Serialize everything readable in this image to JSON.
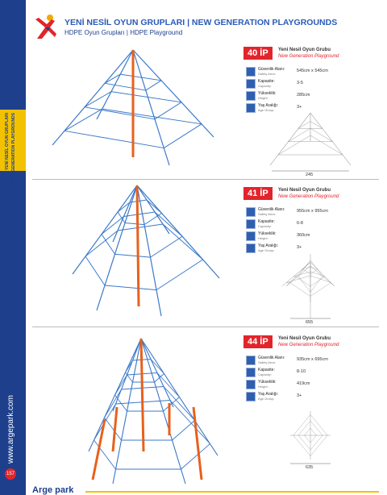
{
  "header": {
    "title": "YENİ NESİL OYUN GRUPLARI | NEW GENERATION PLAYGROUNDS",
    "subtitle": "HDPE Oyun Grupları | HDPE Playground"
  },
  "sidebar": {
    "section_tab": [
      "YENİ NESİL OYUN GRUPLARI",
      "NEW GENERATION PLAYGROUNDS"
    ],
    "website": "www.argepark.com",
    "page_number": "157"
  },
  "products": [
    {
      "code": "40 İP",
      "name_tr": "Yeni Nesil Oyun Grubu",
      "name_en": "New Generation Playground",
      "dimension": "245",
      "specs": [
        {
          "label_tr": "Güvenlik Alanı:",
          "label_en": "Safety Area:",
          "value": "545cm x 545cm"
        },
        {
          "label_tr": "Kapasite:",
          "label_en": "Capacity:",
          "value": "3-5"
        },
        {
          "label_tr": "Yükseklik:",
          "label_en": "Height:",
          "value": "285cm"
        },
        {
          "label_tr": "Yaş Aralığı:",
          "label_en": "Age Group:",
          "value": "3+"
        }
      ]
    },
    {
      "code": "41 İP",
      "name_tr": "Yeni Nesil Oyun Grubu",
      "name_en": "New Generation Playground",
      "dimension": "655",
      "specs": [
        {
          "label_tr": "Güvenlik Alanı:",
          "label_en": "Safety Area:",
          "value": "955cm x 955cm"
        },
        {
          "label_tr": "Kapasite:",
          "label_en": "Capacity:",
          "value": "6-8"
        },
        {
          "label_tr": "Yükseklik:",
          "label_en": "Height:",
          "value": "360cm"
        },
        {
          "label_tr": "Yaş Aralığı:",
          "label_en": "Age Group:",
          "value": "3+"
        }
      ]
    },
    {
      "code": "44 İP",
      "name_tr": "Yeni Nesil Oyun Grubu",
      "name_en": "New Generation Playground",
      "dimension": "635",
      "specs": [
        {
          "label_tr": "Güvenlik Alanı:",
          "label_en": "Safety Area:",
          "value": "935cm x 695cm"
        },
        {
          "label_tr": "Kapasite:",
          "label_en": "Capacity:",
          "value": "8-10"
        },
        {
          "label_tr": "Yükseklik:",
          "label_en": "Height:",
          "value": "419cm"
        },
        {
          "label_tr": "Yaş Aralığı:",
          "label_en": "Age Group:",
          "value": "3+"
        }
      ]
    }
  ],
  "footer": {
    "brand": "Arge park"
  }
}
